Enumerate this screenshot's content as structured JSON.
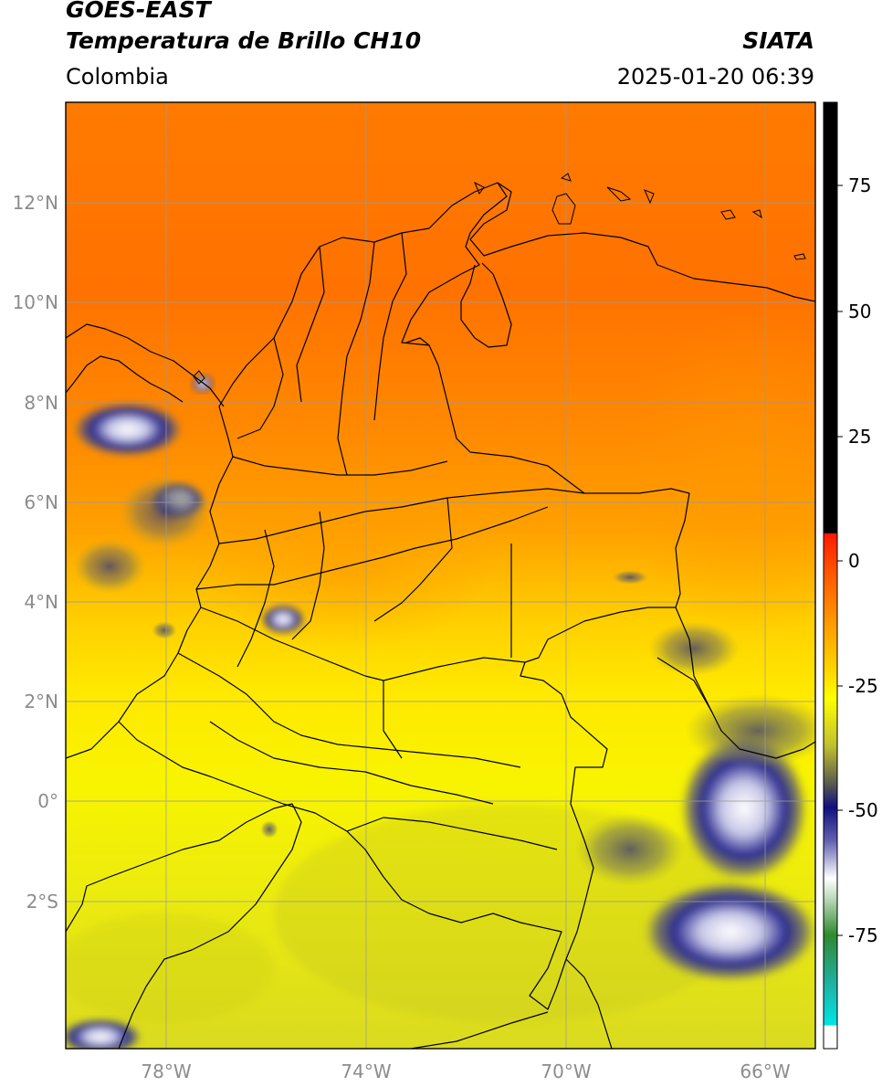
{
  "header": {
    "satellite": "GOES-EAST",
    "product": "Temperatura de Brillo CH10",
    "organization": "SIATA",
    "region": "Colombia",
    "datetime": "2025-01-20 06:39"
  },
  "map": {
    "lat_ticks": [
      "12°N",
      "10°N",
      "8°N",
      "6°N",
      "4°N",
      "2°N",
      "0°",
      "2°S"
    ],
    "lon_ticks": [
      "78°W",
      "74°W",
      "70°W",
      "66°W"
    ],
    "lat_values": [
      12,
      10,
      8,
      6,
      4,
      2,
      0,
      -2
    ],
    "lon_values": [
      -78,
      -74,
      -70,
      -66
    ],
    "extent": {
      "lon_min": -80,
      "lon_max": -65,
      "lat_min": -4.9,
      "lat_max": 14
    },
    "gridlines": true
  },
  "colorbar": {
    "labels": [
      "75",
      "50",
      "25",
      "0",
      "-25",
      "-50",
      "-75"
    ],
    "values": [
      75,
      50,
      25,
      0,
      -25,
      -50,
      -75
    ],
    "range": [
      -95,
      90
    ],
    "colors": {
      "black": "#000000",
      "red": "#ff1a00",
      "orange": "#ff8c00",
      "yellow": "#ffff00",
      "olive": "#8a8a30",
      "navy": "#101080",
      "white": "#ffffff",
      "green": "#2f8a2f",
      "teal": "#20b0a0",
      "cyan": "#00e5e5"
    }
  }
}
